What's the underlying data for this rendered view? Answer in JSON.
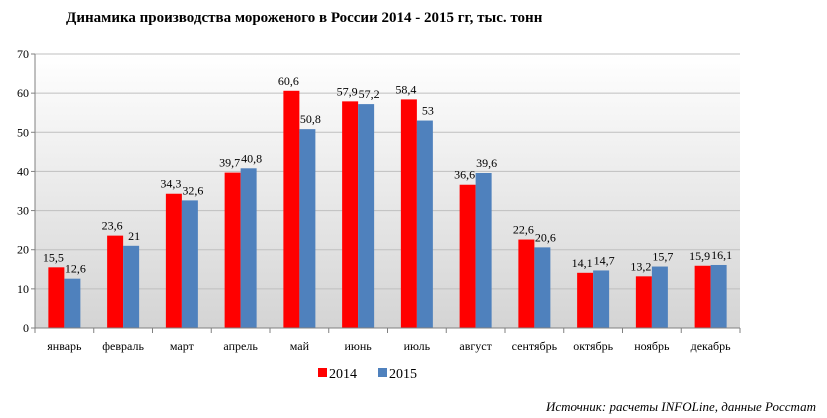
{
  "chart_data": {
    "type": "bar",
    "title": "Динамика  производства  мороженого в России 2014 - 2015 гг, тыс. тонн",
    "xlabel": "",
    "ylabel": "",
    "ylim": [
      0,
      70
    ],
    "yticks": [
      0,
      10,
      20,
      30,
      40,
      50,
      60,
      70
    ],
    "grid": true,
    "legend_position": "bottom",
    "categories": [
      "январь",
      "февраль",
      "март",
      "апрель",
      "май",
      "июнь",
      "июль",
      "август",
      "сентябрь",
      "октябрь",
      "ноябрь",
      "декабрь"
    ],
    "series": [
      {
        "name": "2014",
        "color": "#ff0000",
        "values": [
          15.5,
          23.6,
          34.3,
          39.7,
          60.6,
          57.9,
          58.4,
          36.6,
          22.6,
          14.1,
          13.2,
          15.9
        ],
        "labels": [
          "15,5",
          "23,6",
          "34,3",
          "39,7",
          "60,6",
          "57,9",
          "58,4",
          "36,6",
          "22,6",
          "14,1",
          "13,2",
          "15,9"
        ]
      },
      {
        "name": "2015",
        "color": "#4f81bd",
        "values": [
          12.6,
          21,
          32.6,
          40.8,
          50.8,
          57.2,
          53,
          39.6,
          20.6,
          14.7,
          15.7,
          16.1
        ],
        "labels": [
          "12,6",
          "21",
          "32,6",
          "40,8",
          "50,8",
          "57,2",
          "53",
          "39,6",
          "20,6",
          "14,7",
          "15,7",
          "16,1"
        ]
      }
    ],
    "source": "Источник: расчеты INFOLine, данные Росстат"
  }
}
